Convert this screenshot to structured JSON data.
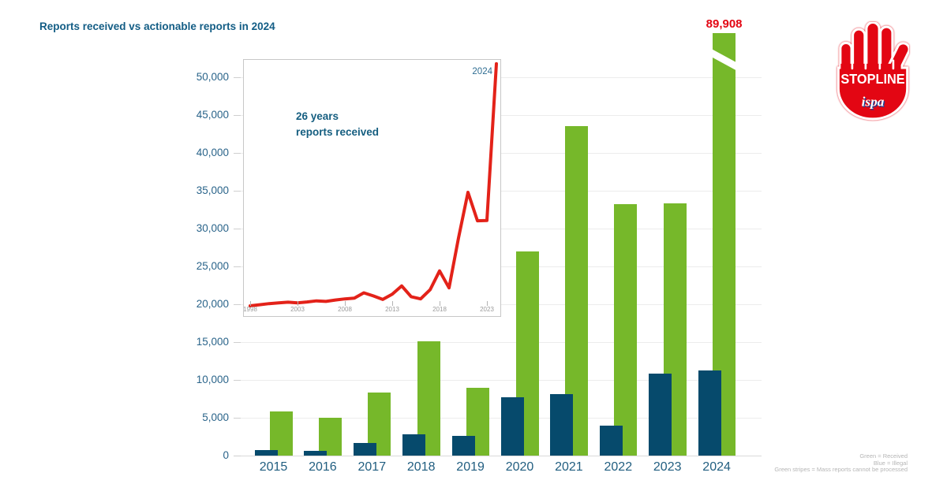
{
  "title": "Reports received vs actionable reports in 2024",
  "annotation_2024": "89,908",
  "colors": {
    "green": "#76b82a",
    "blue": "#064a6c",
    "red": "#e30613",
    "red_line": "#e32219",
    "teal_text": "#155e80",
    "ispa_blue": "#1c3f94"
  },
  "legend": {
    "lines": [
      "Green = Received",
      "Blue = Illegal",
      "Green stripes = Mass reports cannot be processed"
    ]
  },
  "inset": {
    "caption_line1": "26 years",
    "caption_line2": "reports received",
    "end_label": "2024"
  },
  "logo": {
    "stopline": "STOPLINE",
    "ispa": "ispa"
  },
  "chart_data": [
    {
      "type": "bar",
      "title": "Reports received vs actionable reports in 2024",
      "categories": [
        "2015",
        "2016",
        "2017",
        "2018",
        "2019",
        "2020",
        "2021",
        "2022",
        "2023",
        "2024"
      ],
      "series": [
        {
          "name": "Received",
          "color": "#76b82a",
          "values": [
            5800,
            5000,
            8300,
            15100,
            9000,
            27000,
            43500,
            33200,
            33300,
            89908
          ]
        },
        {
          "name": "Illegal",
          "color": "#064a6c",
          "values": [
            700,
            600,
            1700,
            2800,
            2600,
            7700,
            8100,
            4000,
            10800,
            11200
          ]
        }
      ],
      "ylim": [
        0,
        50000
      ],
      "ytick_step": 5000,
      "grid": true,
      "legend_position": "bottom-right",
      "axis_break": {
        "category": "2024",
        "series": "Received",
        "note": "bar exceeds axis top, shown with white break stripe",
        "data_label": "89,908"
      }
    },
    {
      "type": "line",
      "label": "26 years reports received",
      "color": "#e32219",
      "x": [
        1998,
        1999,
        2000,
        2001,
        2002,
        2003,
        2004,
        2005,
        2006,
        2007,
        2008,
        2009,
        2010,
        2011,
        2012,
        2013,
        2014,
        2015,
        2016,
        2017,
        2018,
        2019,
        2020,
        2021,
        2022,
        2023,
        2024
      ],
      "values": [
        2500,
        2900,
        3300,
        3600,
        3800,
        3600,
        3900,
        4300,
        4100,
        4600,
        5000,
        5300,
        7200,
        6100,
        4800,
        6700,
        9700,
        5800,
        5000,
        8300,
        15100,
        9000,
        27000,
        43500,
        33200,
        33300,
        89908
      ],
      "xticks": [
        1998,
        2003,
        2008,
        2013,
        2018,
        2023
      ],
      "end_label": "2024",
      "yaxis": "unlabeled",
      "grid": false
    }
  ]
}
